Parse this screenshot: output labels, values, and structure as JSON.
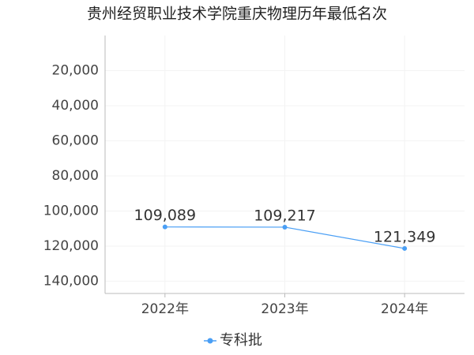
{
  "chart_data": {
    "type": "line",
    "title": "贵州经贸职业技术学院重庆物理历年最低名次",
    "categories": [
      "2022年",
      "2023年",
      "2024年"
    ],
    "series": [
      {
        "name": "专科批",
        "color": "#4a9ff5",
        "values": [
          109089,
          109217,
          121349
        ],
        "value_labels": [
          "109,089",
          "109,217",
          "121,349"
        ]
      }
    ],
    "ylim": [
      0,
      147000
    ],
    "inverted": true,
    "yticks": [
      {
        "value": 20000,
        "label": "20,000"
      },
      {
        "value": 40000,
        "label": "40,000"
      },
      {
        "value": 60000,
        "label": "60,000"
      },
      {
        "value": 80000,
        "label": "80,000"
      },
      {
        "value": 100000,
        "label": "100,000"
      },
      {
        "value": 120000,
        "label": "120,000"
      },
      {
        "value": 140000,
        "label": "140,000"
      }
    ],
    "grid": true,
    "legend": "bottom"
  }
}
